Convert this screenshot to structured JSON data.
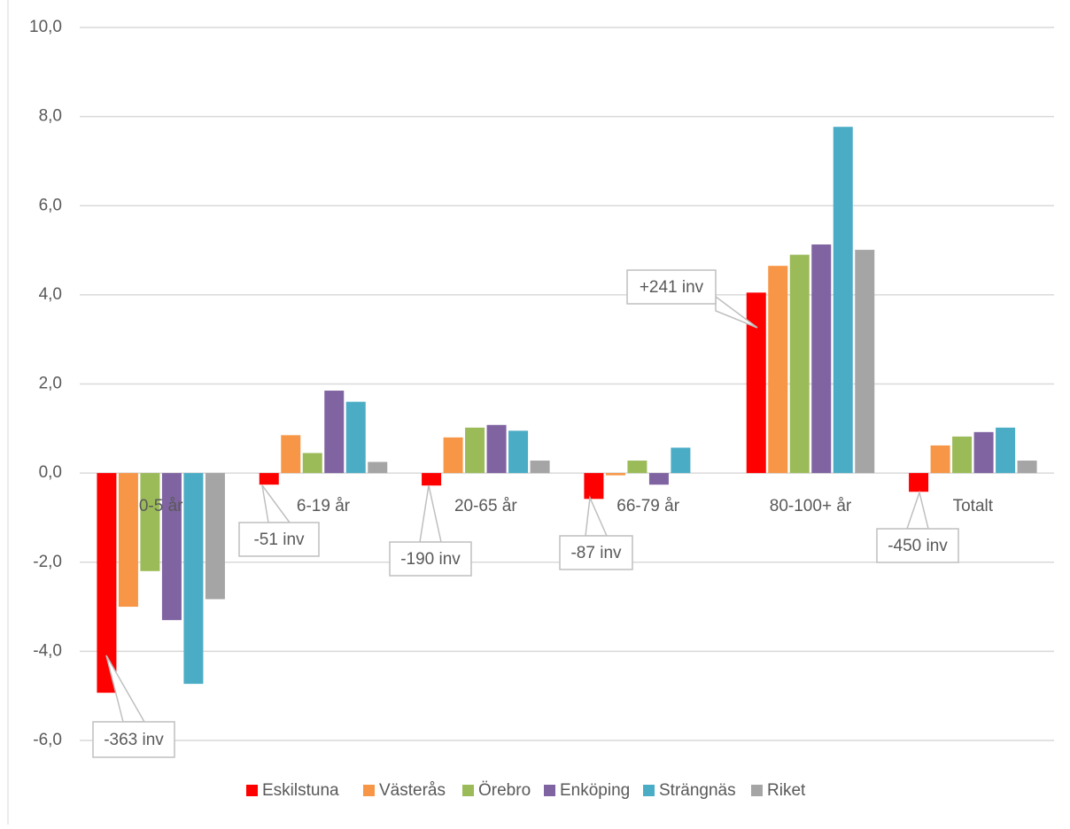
{
  "chart_data": {
    "type": "bar",
    "categories": [
      "0-5 år",
      "6-19 år",
      "20-65 år",
      "66-79 år",
      "80-100+ år",
      "Totalt"
    ],
    "series": [
      {
        "name": "Eskilstuna",
        "color": "#ff0000",
        "values": [
          -4.93,
          -0.26,
          -0.28,
          -0.58,
          4.05,
          -0.42
        ]
      },
      {
        "name": "Västerås",
        "color": "#f79646",
        "values": [
          -3.0,
          0.85,
          0.8,
          -0.05,
          4.65,
          0.62
        ]
      },
      {
        "name": "Örebro",
        "color": "#9bbb59",
        "values": [
          -2.2,
          0.45,
          1.02,
          0.28,
          4.9,
          0.82
        ]
      },
      {
        "name": "Enköping",
        "color": "#8064a2",
        "values": [
          -3.3,
          1.85,
          1.08,
          -0.26,
          5.13,
          0.92
        ]
      },
      {
        "name": "Strängnäs",
        "color": "#4bacc6",
        "values": [
          -4.73,
          1.6,
          0.95,
          0.57,
          7.77,
          1.02
        ]
      },
      {
        "name": "Riket",
        "color": "#a5a5a5",
        "values": [
          -2.83,
          0.25,
          0.28,
          0,
          5.01,
          0.28
        ]
      }
    ],
    "ylim": [
      -6,
      10
    ],
    "yticks": [
      {
        "value": -6,
        "label": "-6,0"
      },
      {
        "value": -4,
        "label": "-4,0"
      },
      {
        "value": -2,
        "label": "-2,0"
      },
      {
        "value": 0,
        "label": "0,0"
      },
      {
        "value": 2,
        "label": "2,0"
      },
      {
        "value": 4,
        "label": "4,0"
      },
      {
        "value": 6,
        "label": "6,0"
      },
      {
        "value": 8,
        "label": "8,0"
      },
      {
        "value": 10,
        "label": "10,0"
      }
    ],
    "grid": true,
    "legend": "bottom",
    "annotations": [
      "-363 inv",
      "-51 inv",
      "-190 inv",
      "-87 inv",
      "+241 inv",
      "-450 inv"
    ]
  }
}
